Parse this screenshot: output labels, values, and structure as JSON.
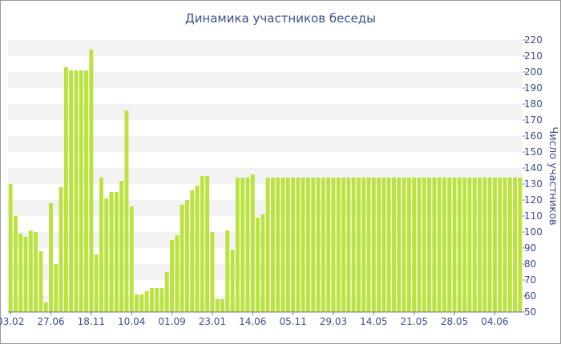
{
  "chart_data": {
    "type": "bar",
    "title": "Динамика участников беседы",
    "ylabel": "Число участников",
    "xlabel": "",
    "ylim": [
      50,
      220
    ],
    "y_ticks": [
      50,
      60,
      70,
      80,
      90,
      100,
      110,
      120,
      130,
      140,
      150,
      160,
      170,
      180,
      190,
      200,
      210,
      220
    ],
    "y_axis_side": "right",
    "grid": "alternating horizontal bands",
    "legend": "none",
    "bar_color": "#bbe33d",
    "x_tick_labels": [
      "03.02",
      "27.06",
      "18.11",
      "10.04",
      "01.09",
      "23.01",
      "14.06",
      "05.11",
      "29.03",
      "14.05",
      "21.05",
      "28.05",
      "04.06"
    ],
    "x_tick_indices": [
      0,
      8,
      16,
      24,
      32,
      40,
      48,
      56,
      64,
      72,
      80,
      88,
      96
    ],
    "values": [
      130,
      110,
      99,
      97,
      101,
      100,
      88,
      56,
      118,
      80,
      128,
      203,
      201,
      201,
      201,
      201,
      214,
      86,
      134,
      121,
      125,
      125,
      132,
      176,
      116,
      61,
      61,
      63,
      65,
      65,
      65,
      75,
      95,
      98,
      117,
      120,
      126,
      129,
      135,
      135,
      100,
      58,
      58,
      101,
      89,
      134,
      134,
      134,
      136,
      109,
      111,
      134,
      134,
      134,
      134,
      134,
      134,
      134,
      134,
      134,
      134,
      134,
      134,
      134,
      134,
      134,
      134,
      134,
      134,
      134,
      134,
      134,
      134,
      134,
      134,
      134,
      134,
      134,
      134,
      134,
      134,
      134,
      134,
      134,
      134,
      134,
      134,
      134,
      134,
      134,
      134,
      134,
      134,
      134,
      134,
      134,
      134,
      134,
      134,
      134,
      134,
      134
    ]
  }
}
